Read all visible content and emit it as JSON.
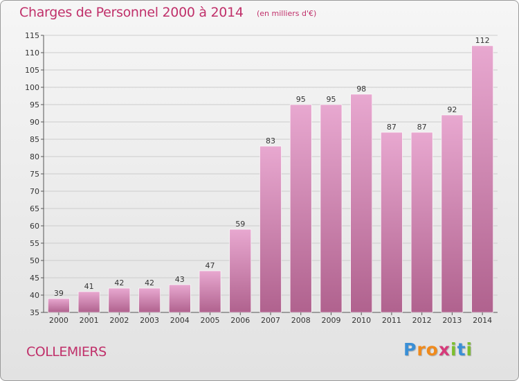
{
  "header": {
    "title": "Charges de Personnel 2000 à 2014",
    "subtitle": "(en milliers d'€)"
  },
  "footer": {
    "town": "COLLEMIERS",
    "logo_letters": [
      "P",
      "r",
      "o",
      "x",
      "i",
      "t",
      "i"
    ],
    "logo_colors": [
      "#3a8fd6",
      "#f08a1c",
      "#f08a1c",
      "#d63a7a",
      "#7cbf2e",
      "#3a8fd6",
      "#7cbf2e"
    ]
  },
  "colors": {
    "bar_top": "#e8a8d0",
    "bar_bottom": "#b0628e",
    "accent": "#c0306a",
    "gridline": "#cccccc"
  },
  "chart_data": {
    "type": "bar",
    "categories": [
      "2000",
      "2001",
      "2002",
      "2003",
      "2004",
      "2005",
      "2006",
      "2007",
      "2008",
      "2009",
      "2010",
      "2011",
      "2012",
      "2013",
      "2014"
    ],
    "values": [
      39,
      41,
      42,
      42,
      43,
      47,
      59,
      83,
      95,
      95,
      98,
      87,
      87,
      92,
      112
    ],
    "title": "Charges de Personnel 2000 à 2014",
    "subtitle": "(en milliers d'€)",
    "ylim": [
      35,
      115
    ],
    "yticks": [
      35,
      40,
      45,
      50,
      55,
      60,
      65,
      70,
      75,
      80,
      85,
      90,
      95,
      100,
      105,
      110,
      115
    ],
    "grid": true,
    "data_labels": true
  }
}
